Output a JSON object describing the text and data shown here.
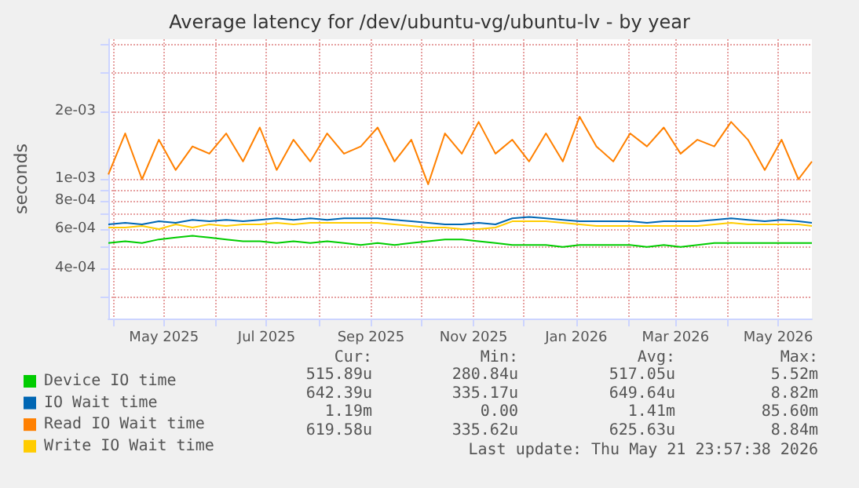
{
  "chart_data": {
    "type": "line",
    "title": "Average latency for /dev/ubuntu-vg/ubuntu-lv - by year",
    "ylabel": "seconds",
    "log": "y",
    "grid": true,
    "legend": "bottom",
    "marker": "none",
    "line_style": "solid",
    "x": [
      "2025-03-29",
      "2025-04-08",
      "2025-04-18",
      "2025-04-28",
      "2025-05-08",
      "2025-05-18",
      "2025-05-28",
      "2025-06-07",
      "2025-06-17",
      "2025-06-27",
      "2025-07-07",
      "2025-07-17",
      "2025-07-27",
      "2025-08-06",
      "2025-08-16",
      "2025-08-26",
      "2025-09-05",
      "2025-09-15",
      "2025-09-25",
      "2025-10-05",
      "2025-10-15",
      "2025-10-25",
      "2025-11-04",
      "2025-11-14",
      "2025-11-24",
      "2025-12-04",
      "2025-12-14",
      "2025-12-24",
      "2026-01-03",
      "2026-01-13",
      "2026-01-23",
      "2026-02-02",
      "2026-02-12",
      "2026-02-22",
      "2026-03-04",
      "2026-03-14",
      "2026-03-24",
      "2026-04-03",
      "2026-04-13",
      "2026-04-23",
      "2026-05-03",
      "2026-05-13",
      "2026-05-21"
    ],
    "xlim": [
      "2025-03-29",
      "2026-05-21"
    ],
    "xticks": [
      {
        "value": "2025-04-01",
        "label": null
      },
      {
        "value": "2025-05-01",
        "label": "May 2025"
      },
      {
        "value": "2025-06-01",
        "label": null
      },
      {
        "value": "2025-07-01",
        "label": "Jul 2025"
      },
      {
        "value": "2025-08-01",
        "label": null
      },
      {
        "value": "2025-09-01",
        "label": "Sep 2025"
      },
      {
        "value": "2025-10-01",
        "label": null
      },
      {
        "value": "2025-11-01",
        "label": "Nov 2025"
      },
      {
        "value": "2025-12-01",
        "label": null
      },
      {
        "value": "2026-01-01",
        "label": "Jan 2026"
      },
      {
        "value": "2026-02-01",
        "label": null
      },
      {
        "value": "2026-03-01",
        "label": "Mar 2026"
      },
      {
        "value": "2026-04-01",
        "label": null
      },
      {
        "value": "2026-05-01",
        "label": "May 2026"
      }
    ],
    "ylim": [
      0.00024,
      0.0042
    ],
    "yticks": [
      {
        "value": 0.0003,
        "label": null
      },
      {
        "value": 0.0004,
        "label": "4e-04"
      },
      {
        "value": 0.0005,
        "label": null
      },
      {
        "value": 0.0006,
        "label": "6e-04"
      },
      {
        "value": 0.0007,
        "label": null
      },
      {
        "value": 0.0008,
        "label": "8e-04"
      },
      {
        "value": 0.0009,
        "label": null
      },
      {
        "value": 0.001,
        "label": "1e-03"
      },
      {
        "value": 0.002,
        "label": "2e-03"
      },
      {
        "value": 0.003,
        "label": null
      },
      {
        "value": 0.004,
        "label": null
      }
    ],
    "series": [
      {
        "name": "Device IO time",
        "color": "#00cc00",
        "values": [
          0.00052,
          0.00053,
          0.00052,
          0.00054,
          0.00055,
          0.00056,
          0.00055,
          0.00054,
          0.00053,
          0.00053,
          0.00052,
          0.00053,
          0.00052,
          0.00053,
          0.00052,
          0.00051,
          0.00052,
          0.00051,
          0.00052,
          0.00053,
          0.00054,
          0.00054,
          0.00053,
          0.00052,
          0.00051,
          0.00051,
          0.00051,
          0.0005,
          0.00051,
          0.00051,
          0.00051,
          0.00051,
          0.0005,
          0.00051,
          0.0005,
          0.00051,
          0.00052,
          0.00052,
          0.00052,
          0.00052,
          0.00052,
          0.00052,
          0.00052
        ]
      },
      {
        "name": "IO Wait time",
        "color": "#0066b3",
        "values": [
          0.00063,
          0.00064,
          0.00063,
          0.00065,
          0.00064,
          0.00066,
          0.00065,
          0.00066,
          0.00065,
          0.00066,
          0.00067,
          0.00066,
          0.00067,
          0.00066,
          0.00067,
          0.00067,
          0.00067,
          0.00066,
          0.00065,
          0.00064,
          0.00063,
          0.00063,
          0.00064,
          0.00063,
          0.00067,
          0.00068,
          0.00067,
          0.00066,
          0.00065,
          0.00065,
          0.00065,
          0.00065,
          0.00064,
          0.00065,
          0.00065,
          0.00065,
          0.00066,
          0.00067,
          0.00066,
          0.00065,
          0.00066,
          0.00065,
          0.00064
        ]
      },
      {
        "name": "Read IO Wait time",
        "color": "#ff8000",
        "values": [
          0.00105,
          0.0016,
          0.001,
          0.0015,
          0.0011,
          0.0014,
          0.0013,
          0.0016,
          0.0012,
          0.0017,
          0.0011,
          0.0015,
          0.0012,
          0.0016,
          0.0013,
          0.0014,
          0.0017,
          0.0012,
          0.0015,
          0.00095,
          0.0016,
          0.0013,
          0.0018,
          0.0013,
          0.0015,
          0.0012,
          0.0016,
          0.0012,
          0.0019,
          0.0014,
          0.0012,
          0.0016,
          0.0014,
          0.0017,
          0.0013,
          0.0015,
          0.0014,
          0.0018,
          0.0015,
          0.0011,
          0.0015,
          0.001,
          0.0012
        ]
      },
      {
        "name": "Write IO Wait time",
        "color": "#ffcc00",
        "values": [
          0.00061,
          0.00061,
          0.00062,
          0.0006,
          0.00063,
          0.00061,
          0.00063,
          0.00062,
          0.00063,
          0.00063,
          0.00064,
          0.00063,
          0.00064,
          0.00064,
          0.00064,
          0.00064,
          0.00064,
          0.00063,
          0.00062,
          0.00061,
          0.00061,
          0.0006,
          0.0006,
          0.00061,
          0.00065,
          0.00065,
          0.00065,
          0.00064,
          0.00063,
          0.00062,
          0.00062,
          0.00062,
          0.00062,
          0.00062,
          0.00062,
          0.00062,
          0.00063,
          0.00064,
          0.00063,
          0.00063,
          0.00063,
          0.00063,
          0.00062
        ]
      }
    ],
    "annotations": [
      "Cur:",
      "Min:",
      "Avg:",
      "Max:",
      "515.89u",
      "280.84u",
      "517.05u",
      "5.52m",
      "642.39u",
      "335.17u",
      "649.64u",
      "8.82m",
      "1.19m",
      "0.00",
      "1.41m",
      "85.60m",
      "619.58u",
      "335.62u",
      "625.63u",
      "8.84m",
      "Last update: Thu May 21 23:57:38 2026"
    ]
  }
}
